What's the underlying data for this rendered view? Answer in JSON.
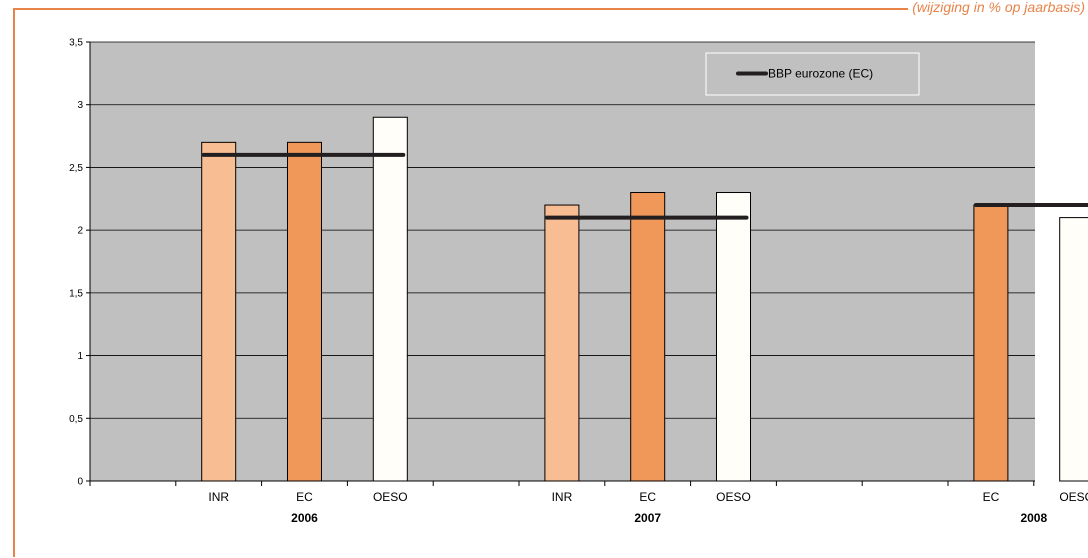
{
  "header": {
    "corner_note": "(wijziging in % op jaarbasis)"
  },
  "colors": {
    "plot_bg": "#c0c0c0",
    "frame": "#e8834a",
    "INR": "#f8bd93",
    "EC": "#f0975a",
    "OESO": "#fffef9",
    "line": "#231f20"
  },
  "chart_data": {
    "type": "bar",
    "ylim": [
      0,
      3.5
    ],
    "yticks": [
      "0",
      "0,5",
      "1",
      "1,5",
      "2",
      "2,5",
      "3",
      "3,5"
    ],
    "groups": [
      {
        "label": "2006",
        "bars": [
          {
            "category": "INR",
            "value": 2.7
          },
          {
            "category": "EC",
            "value": 2.7
          },
          {
            "category": "OESO",
            "value": 2.9
          }
        ],
        "eurozone_gdp": 2.6
      },
      {
        "label": "2007",
        "bars": [
          {
            "category": "INR",
            "value": 2.2
          },
          {
            "category": "EC",
            "value": 2.3
          },
          {
            "category": "OESO",
            "value": 2.3
          }
        ],
        "eurozone_gdp": 2.1
      },
      {
        "label": "2008",
        "bars": [
          {
            "category": "EC",
            "value": 2.2
          },
          {
            "category": "OESO",
            "value": 2.1
          }
        ],
        "eurozone_gdp": 2.2
      }
    ],
    "legend": [
      {
        "label": "BBP eurozone (EC)",
        "style": "line"
      }
    ],
    "legend_position": "top-right",
    "grid": true
  }
}
